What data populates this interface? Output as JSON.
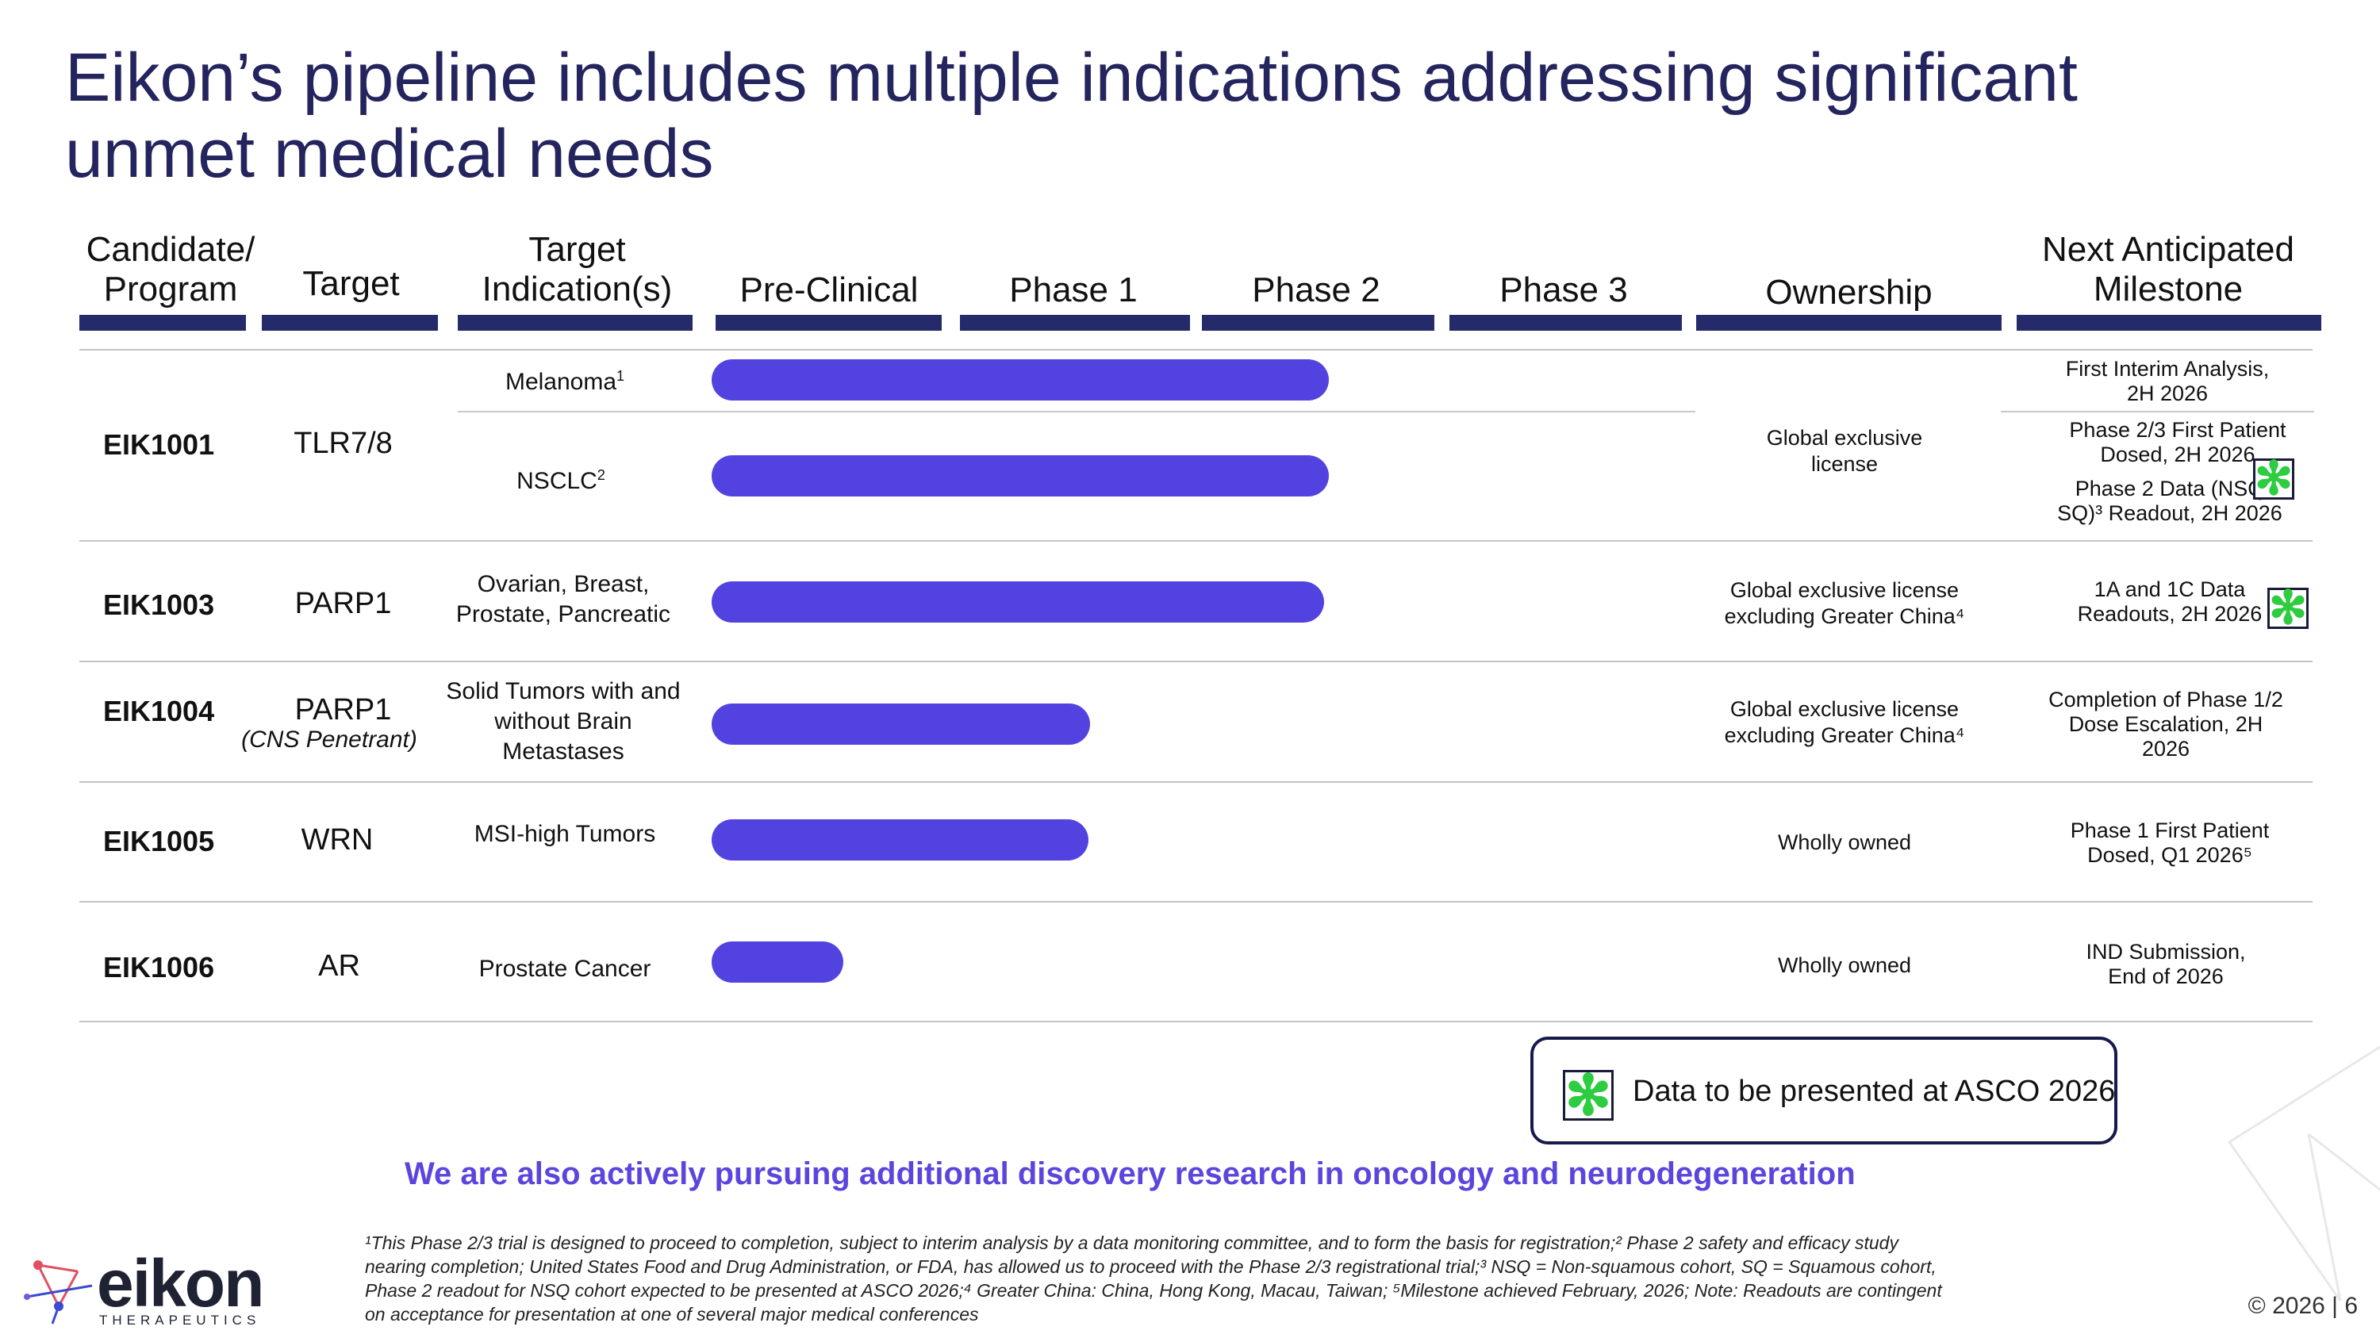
{
  "title": "Eikon’s pipeline includes multiple indications addressing significant unmet medical needs",
  "headers": {
    "candidate": "Candidate/\nProgram",
    "target": "Target",
    "indication": "Target\nIndication(s)",
    "preclinical": "Pre-Clinical",
    "phase1": "Phase 1",
    "phase2": "Phase 2",
    "phase3": "Phase 3",
    "ownership": "Ownership",
    "milestone": "Next Anticipated\nMilestone"
  },
  "rows": [
    {
      "candidate": "EIK1001",
      "target": "TLR7/8",
      "indications": [
        {
          "name": "Melanoma",
          "sup": "1",
          "progress_phase": 2.5
        },
        {
          "name": "NSCLC",
          "sup": "2",
          "progress_phase": 2.5
        }
      ],
      "ownership": "Global exclusive\nlicense",
      "milestones": [
        {
          "text": "First Interim Analysis,\n2H 2026",
          "asco": false
        },
        {
          "text": "Phase 2/3 First Patient\nDosed, 2H 2026",
          "asco": false
        },
        {
          "text": "Phase 2 Data (NSQ\nSQ)³ Readout, 2H 2026",
          "asco": true
        }
      ]
    },
    {
      "candidate": "EIK1003",
      "target": "PARP1",
      "indication": "Ovarian, Breast,\nProstate, Pancreatic",
      "progress_phase": 2.5,
      "ownership": "Global exclusive license\nexcluding Greater China⁴",
      "milestone": "1A and 1C Data\nReadouts, 2H 2026",
      "asco": true
    },
    {
      "candidate": "EIK1004",
      "target": "PARP1",
      "target_note": "(CNS Penetrant)",
      "indication": "Solid Tumors with and\nwithout Brain\nMetastases",
      "progress_phase": 1.6,
      "ownership": "Global exclusive license\nexcluding Greater China⁴",
      "milestone": "Completion of Phase 1/2\nDose Escalation, 2H\n2026",
      "asco": false
    },
    {
      "candidate": "EIK1005",
      "target": "WRN",
      "indication": "MSI-high Tumors",
      "progress_phase": 1.6,
      "ownership": "Wholly owned",
      "milestone": "Phase 1 First Patient\nDosed, Q1 2026⁵",
      "asco": false
    },
    {
      "candidate": "EIK1006",
      "target": "AR",
      "indication": "Prostate Cancer",
      "progress_phase": 0.55,
      "ownership": "Wholly owned",
      "milestone": "IND Submission,\nEnd of 2026",
      "asco": false
    }
  ],
  "legend": {
    "text": "Data to be presented at ASCO 2026",
    "icon": "asterisk-icon",
    "icon_color": "#2ecc40"
  },
  "tagline": "We are also actively pursuing additional discovery research in oncology and neurodegeneration",
  "footnote": "¹This Phase 2/3 trial is designed to proceed to completion, subject to interim analysis by a data monitoring committee, and to form the basis for registration;² Phase 2 safety and efficacy study nearing completion; United States Food and Drug Administration, or FDA, has allowed us to proceed with the Phase 2/3 registrational trial;³ NSQ = Non-squamous cohort, SQ = Squamous cohort, Phase 2 readout for NSQ cohort expected to be presented at ASCO 2026;⁴ Greater China: China, Hong Kong, Macau, Taiwan; ⁵Milestone achieved February, 2026; Note: Readouts are contingent on acceptance for presentation at one of several major medical conferences",
  "copyright": "© 2026 | 6",
  "logo": {
    "name": "eikon",
    "sub": "THERAPEUTICS"
  },
  "colors": {
    "title": "#24245e",
    "bar": "#5243e0",
    "header_bar": "#252a6b",
    "tagline": "#5b45dd"
  }
}
